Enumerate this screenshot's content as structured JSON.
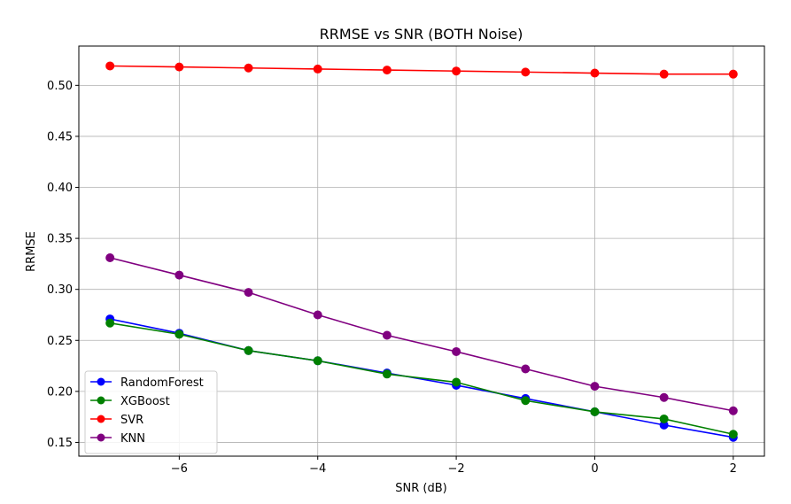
{
  "chart_data": {
    "type": "line",
    "title": "RRMSE vs SNR (BOTH Noise)",
    "xlabel": "SNR (dB)",
    "ylabel": "RRMSE",
    "xlim": [
      -7.45,
      2.45
    ],
    "ylim": [
      0.1365,
      0.5385
    ],
    "xticks": [
      -6,
      -4,
      -2,
      0,
      2
    ],
    "xtick_labels": [
      "−6",
      "−4",
      "−2",
      "0",
      "2"
    ],
    "yticks": [
      0.15,
      0.2,
      0.25,
      0.3,
      0.35,
      0.4,
      0.45,
      0.5
    ],
    "ytick_labels": [
      "0.15",
      "0.20",
      "0.25",
      "0.30",
      "0.35",
      "0.40",
      "0.45",
      "0.50"
    ],
    "grid": true,
    "legend_position": "lower-left",
    "x": [
      -7,
      -6,
      -5,
      -4,
      -3,
      -2,
      -1,
      0,
      1,
      2
    ],
    "series": [
      {
        "name": "RandomForest",
        "color": "#0000ff",
        "values": [
          0.271,
          0.257,
          0.24,
          0.23,
          0.218,
          0.206,
          0.193,
          0.18,
          0.167,
          0.155
        ]
      },
      {
        "name": "XGBoost",
        "color": "#008000",
        "values": [
          0.267,
          0.256,
          0.24,
          0.23,
          0.217,
          0.209,
          0.191,
          0.18,
          0.173,
          0.158
        ]
      },
      {
        "name": "SVR",
        "color": "#ff0000",
        "values": [
          0.519,
          0.518,
          0.517,
          0.516,
          0.515,
          0.514,
          0.513,
          0.512,
          0.511,
          0.511
        ]
      },
      {
        "name": "KNN",
        "color": "#800080",
        "values": [
          0.331,
          0.314,
          0.297,
          0.275,
          0.255,
          0.239,
          0.222,
          0.205,
          0.194,
          0.181
        ]
      }
    ]
  }
}
